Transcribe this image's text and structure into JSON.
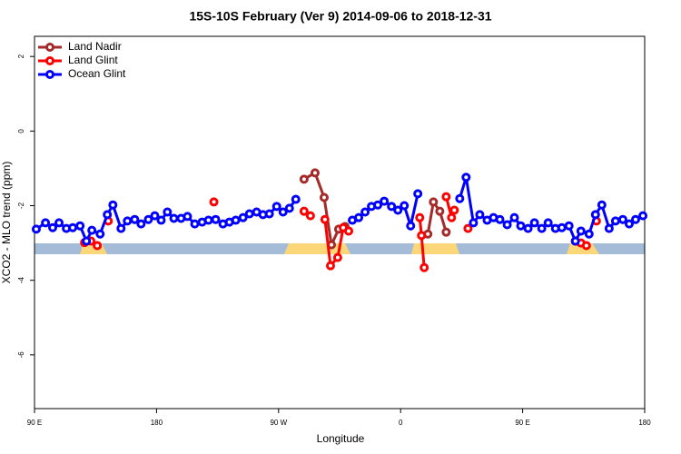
{
  "chart_data": {
    "type": "line",
    "title": "15S-10S February (Ver 9)   2014-09-06 to 2018-12-31",
    "x_label": "Longitude",
    "y_label": "XCO2 - MLO trend (ppm)",
    "xlim": [
      90,
      540
    ],
    "ylim": [
      -7.44,
      2.54
    ],
    "xticks": [
      {
        "value": 90,
        "label": "90 E"
      },
      {
        "value": 180,
        "label": "180"
      },
      {
        "value": 270,
        "label": "90 W"
      },
      {
        "value": 360,
        "label": "0"
      },
      {
        "value": 450,
        "label": "90 E"
      },
      {
        "value": 540,
        "label": "180"
      }
    ],
    "yticks": [
      2,
      0,
      -2,
      -4,
      -6
    ],
    "legend": "top-left",
    "series": [
      {
        "name": "Land Nadir",
        "color": "#a52a2a",
        "x": [
          288.8,
          296.9,
          303.6,
          309,
          314.3,
          319,
          null,
          380.1,
          384.2,
          388.9,
          393.6
        ],
        "values": [
          -1.29,
          -1.12,
          -1.78,
          -3.05,
          -2.63,
          -2.56,
          null,
          -2.76,
          -1.9,
          -2.15,
          -2.71
        ]
      },
      {
        "name": "Land Glint",
        "color": "#ff0000",
        "x": [
          126.9,
          131.6,
          136.3,
          null,
          144.4,
          null,
          222.3,
          null,
          288.8,
          293.5,
          null,
          304.2,
          308.3,
          313.6,
          317.7,
          321.7,
          null,
          374.1,
          375.4,
          377.4,
          null,
          393.6,
          397.6,
          399.6,
          null,
          409.7,
          null,
          488.9,
          493,
          497,
          null,
          504.4
        ],
        "values": [
          -2.99,
          -2.95,
          -3.07,
          null,
          -2.41,
          null,
          -1.9,
          null,
          -2.15,
          -2.27,
          null,
          -2.37,
          -3.61,
          -3.39,
          -2.59,
          -2.68,
          null,
          -2.32,
          -2.8,
          -3.66,
          null,
          -1.76,
          -2.32,
          -2.12,
          null,
          -2.61,
          null,
          -2.95,
          -3.0,
          -3.07,
          null,
          -2.41
        ]
      },
      {
        "name": "Ocean Glint",
        "color": "#0000ff",
        "x": [
          91.3,
          98.1,
          103.4,
          108.1,
          113.5,
          118.2,
          123.6,
          128.3,
          132.3,
          138.4,
          143.7,
          147.8,
          153.8,
          158.5,
          163.9,
          168.6,
          174,
          178.7,
          183.4,
          188,
          192.8,
          198.1,
          202.8,
          208.2,
          213.6,
          218.3,
          223.6,
          229,
          233.7,
          238.4,
          243.8,
          248.5,
          253.8,
          258.5,
          263.2,
          268.6,
          273.3,
          278,
          282.7,
          null,
          324.4,
          329.1,
          333.8,
          338.5,
          343.2,
          347.9,
          353.3,
          358,
          362.7,
          367.4,
          372.7,
          null,
          403.6,
          408.3,
          413.7,
          418.4,
          423.8,
          428.5,
          433.2,
          438.6,
          443.9,
          448.6,
          454,
          458.7,
          464.1,
          468.8,
          474.2,
          478.9,
          484.2,
          488.9,
          493,
          499,
          503.7,
          508.4,
          513.8,
          518.5,
          523.9,
          528.6,
          533.3,
          538.7
        ],
        "values": [
          -2.63,
          -2.46,
          -2.59,
          -2.46,
          -2.61,
          -2.59,
          -2.54,
          -2.95,
          -2.66,
          -2.76,
          -2.24,
          -1.98,
          -2.61,
          -2.41,
          -2.37,
          -2.49,
          -2.37,
          -2.27,
          -2.39,
          -2.17,
          -2.34,
          -2.34,
          -2.29,
          -2.49,
          -2.44,
          -2.39,
          -2.37,
          -2.49,
          -2.44,
          -2.39,
          -2.32,
          -2.22,
          -2.17,
          -2.24,
          -2.22,
          -2.02,
          -2.17,
          -2.07,
          -1.83,
          null,
          -2.39,
          -2.32,
          -2.17,
          -2.02,
          -1.98,
          -1.88,
          -2.02,
          -2.12,
          -2.0,
          -2.54,
          -1.68,
          null,
          -1.81,
          -1.24,
          -2.46,
          -2.24,
          -2.39,
          -2.32,
          -2.37,
          -2.51,
          -2.32,
          -2.54,
          -2.61,
          -2.46,
          -2.61,
          -2.46,
          -2.61,
          -2.59,
          -2.54,
          -2.95,
          -2.68,
          -2.76,
          -2.24,
          -1.98,
          -2.61,
          -2.41,
          -2.37,
          -2.49,
          -2.37,
          -2.27
        ]
      }
    ]
  }
}
